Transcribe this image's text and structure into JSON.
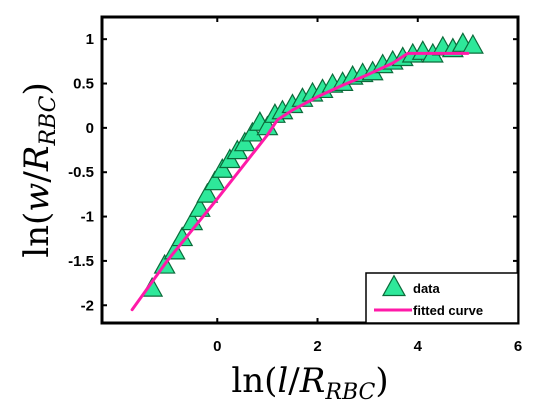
{
  "chart_data": {
    "type": "scatter",
    "title": "",
    "xlabel": {
      "prefix": "ln(",
      "var": "l",
      "slash": "/",
      "R": "R",
      "sub": "RBC",
      "suffix": ")"
    },
    "ylabel": {
      "prefix": "ln(",
      "var": "w",
      "slash": "/",
      "R": "R",
      "sub": "RBC",
      "suffix": ")"
    },
    "xlim": [
      -2.3,
      6
    ],
    "ylim": [
      -2.2,
      1.25
    ],
    "x_ticks": [
      0,
      2,
      4,
      6
    ],
    "y_ticks": [
      -2,
      -1.5,
      -1,
      -0.5,
      0,
      0.5,
      1
    ],
    "x_tick_labels": [
      "0",
      "2",
      "4",
      "6"
    ],
    "y_tick_labels": [
      "-2",
      "-1.5",
      "-1",
      "-0.5",
      "0",
      "0.5",
      "1"
    ],
    "grid": false,
    "legend_position": "bottom-right",
    "colors": {
      "data_fill": "#2ee89a",
      "data_edge": "#0b6b3a",
      "curve": "#ff1aa8"
    },
    "series": [
      {
        "name": "data",
        "kind": "markers",
        "marker": "triangle",
        "x": [
          -1.3,
          -1.05,
          -0.85,
          -0.7,
          -0.5,
          -0.35,
          -0.2,
          -0.05,
          0.1,
          0.25,
          0.4,
          0.55,
          0.7,
          0.85,
          1.0,
          1.15,
          1.3,
          1.5,
          1.7,
          1.9,
          2.1,
          2.3,
          2.5,
          2.7,
          2.9,
          3.1,
          3.3,
          3.5,
          3.7,
          3.9,
          4.1,
          4.3,
          4.5,
          4.7,
          4.9,
          5.1
        ],
        "y": [
          -1.82,
          -1.56,
          -1.4,
          -1.25,
          -1.07,
          -0.92,
          -0.76,
          -0.62,
          -0.48,
          -0.37,
          -0.27,
          -0.18,
          -0.07,
          0.05,
          0.0,
          0.14,
          0.18,
          0.25,
          0.32,
          0.38,
          0.42,
          0.48,
          0.5,
          0.57,
          0.6,
          0.62,
          0.7,
          0.74,
          0.78,
          0.82,
          0.85,
          0.82,
          0.9,
          0.88,
          0.94,
          0.92
        ]
      },
      {
        "name": "fitted curve",
        "kind": "line",
        "x": [
          -1.7,
          -1.0,
          -0.5,
          0.0,
          0.5,
          1.0,
          1.2,
          1.5,
          2.0,
          2.5,
          3.0,
          3.5,
          3.8,
          4.5,
          5.0
        ],
        "y": [
          -2.05,
          -1.5,
          -1.15,
          -0.8,
          -0.44,
          -0.08,
          0.09,
          0.2,
          0.35,
          0.48,
          0.6,
          0.73,
          0.84,
          0.84,
          0.84
        ]
      }
    ]
  }
}
